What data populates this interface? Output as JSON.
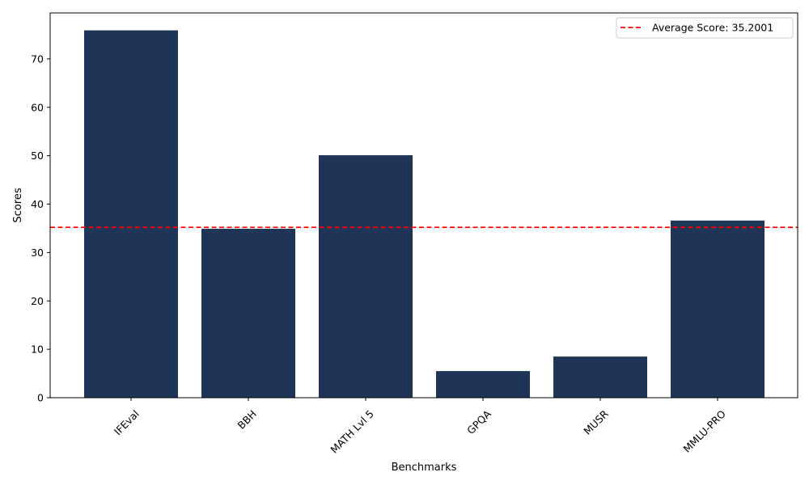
{
  "chart_data": {
    "type": "bar",
    "categories": [
      "IFEval",
      "BBH",
      "MATH Lvl 5",
      "GPQA",
      "MUSR",
      "MMLU-PRO"
    ],
    "values": [
      75.9,
      34.9,
      50.1,
      5.5,
      8.5,
      36.6
    ],
    "xlabel": "Benchmarks",
    "ylabel": "Scores",
    "ylim": [
      0,
      79.5
    ],
    "yticks": [
      0,
      10,
      20,
      30,
      40,
      50,
      60,
      70
    ],
    "bar_color": "#1f3557",
    "reference_line": {
      "value": 35.2001,
      "label": "Average Score: 35.2001",
      "color": "#ff0000",
      "style": "dashed"
    },
    "legend_position": "top-right",
    "grid": false
  }
}
